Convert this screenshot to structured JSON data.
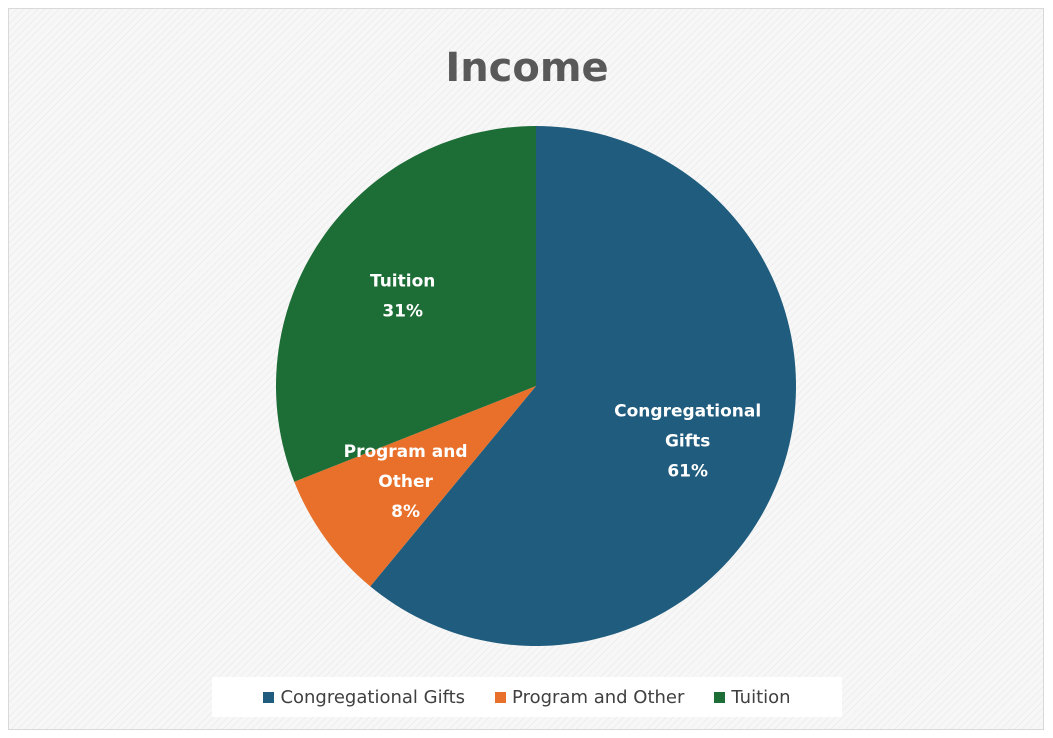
{
  "chart_data": {
    "type": "pie",
    "title": "Income",
    "slices": [
      {
        "label_lines": [
          "Congregational",
          "Gifts"
        ],
        "legend": "Congregational Gifts",
        "value": 61,
        "percent_label": "61%",
        "color": "#1f5c7d"
      },
      {
        "label_lines": [
          "Program and",
          "Other"
        ],
        "legend": "Program and Other",
        "value": 8,
        "percent_label": "8%",
        "color": "#e8702a"
      },
      {
        "label_lines": [
          "Tuition"
        ],
        "legend": "Tuition",
        "value": 31,
        "percent_label": "31%",
        "color": "#1d6d36"
      }
    ],
    "legend_position": "bottom"
  }
}
